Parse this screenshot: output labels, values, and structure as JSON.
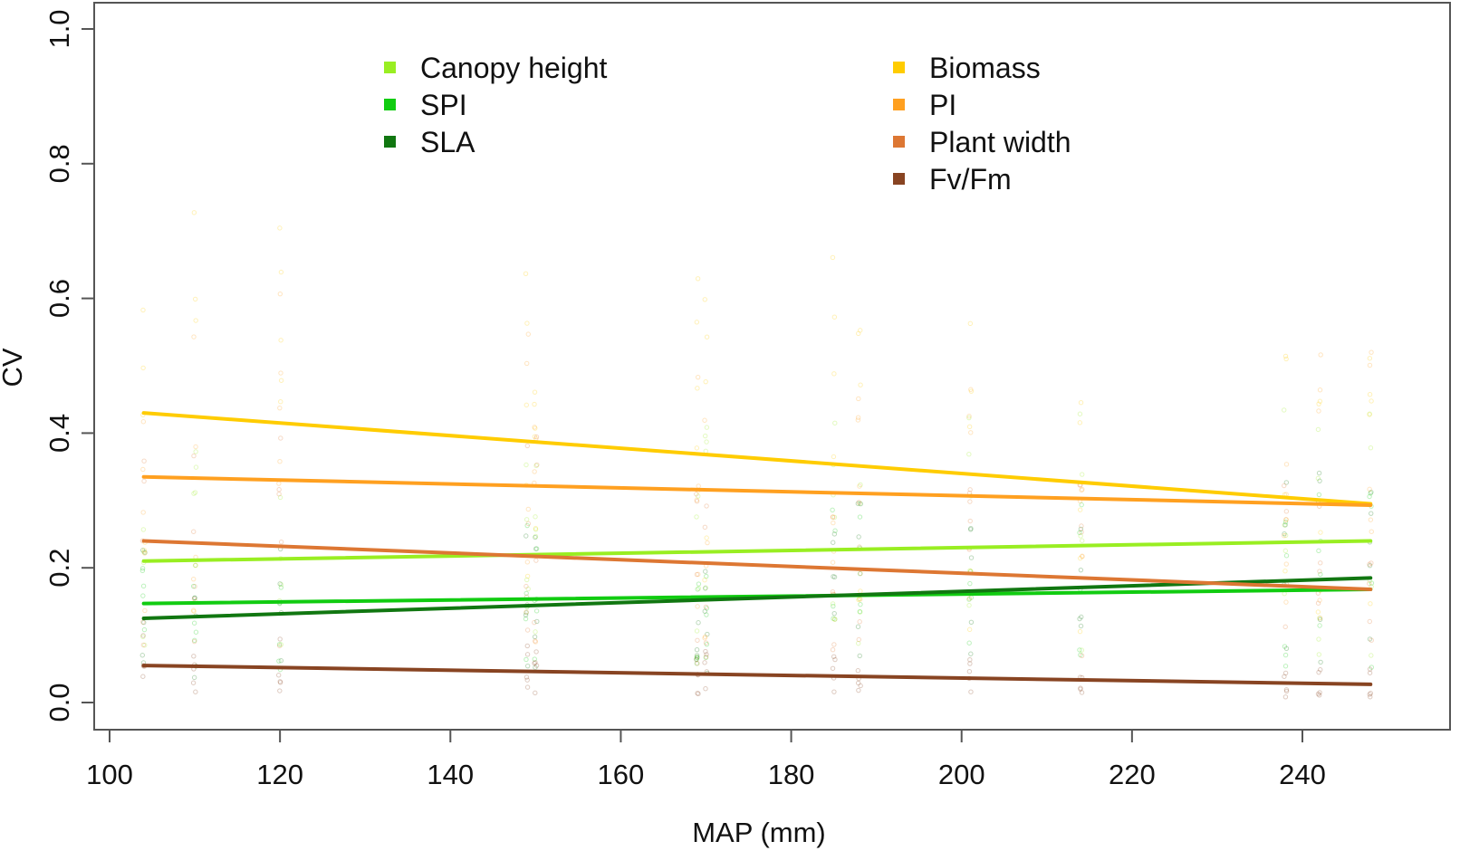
{
  "chart_data": {
    "type": "line",
    "xlabel": "MAP (mm)",
    "ylabel": "CV",
    "xlim": [
      100,
      250
    ],
    "ylim": [
      0,
      1.0
    ],
    "x_ticks": [
      "100",
      "120",
      "140",
      "160",
      "180",
      "200",
      "220",
      "240"
    ],
    "y_ticks": [
      "0.0",
      "0.2",
      "0.4",
      "0.6",
      "0.8",
      "1.0"
    ],
    "grid": false,
    "legend_position": "top",
    "series": [
      {
        "name": "Canopy height",
        "color": "#99ee22",
        "x": [
          104,
          248
        ],
        "y": [
          0.21,
          0.24
        ]
      },
      {
        "name": "SPI",
        "color": "#11cc11",
        "x": [
          104,
          248
        ],
        "y": [
          0.147,
          0.168
        ]
      },
      {
        "name": "SLA",
        "color": "#117711",
        "x": [
          104,
          248
        ],
        "y": [
          0.125,
          0.185
        ]
      },
      {
        "name": "Biomass",
        "color": "#ffcc00",
        "x": [
          104,
          248
        ],
        "y": [
          0.43,
          0.295
        ]
      },
      {
        "name": "PI",
        "color": "#ffa020",
        "x": [
          104,
          248
        ],
        "y": [
          0.335,
          0.293
        ]
      },
      {
        "name": "Plant width",
        "color": "#dd7733",
        "x": [
          104,
          248
        ],
        "y": [
          0.24,
          0.168
        ]
      },
      {
        "name": "Fv/Fm",
        "color": "#884422",
        "x": [
          104,
          248
        ],
        "y": [
          0.055,
          0.027
        ]
      }
    ]
  }
}
